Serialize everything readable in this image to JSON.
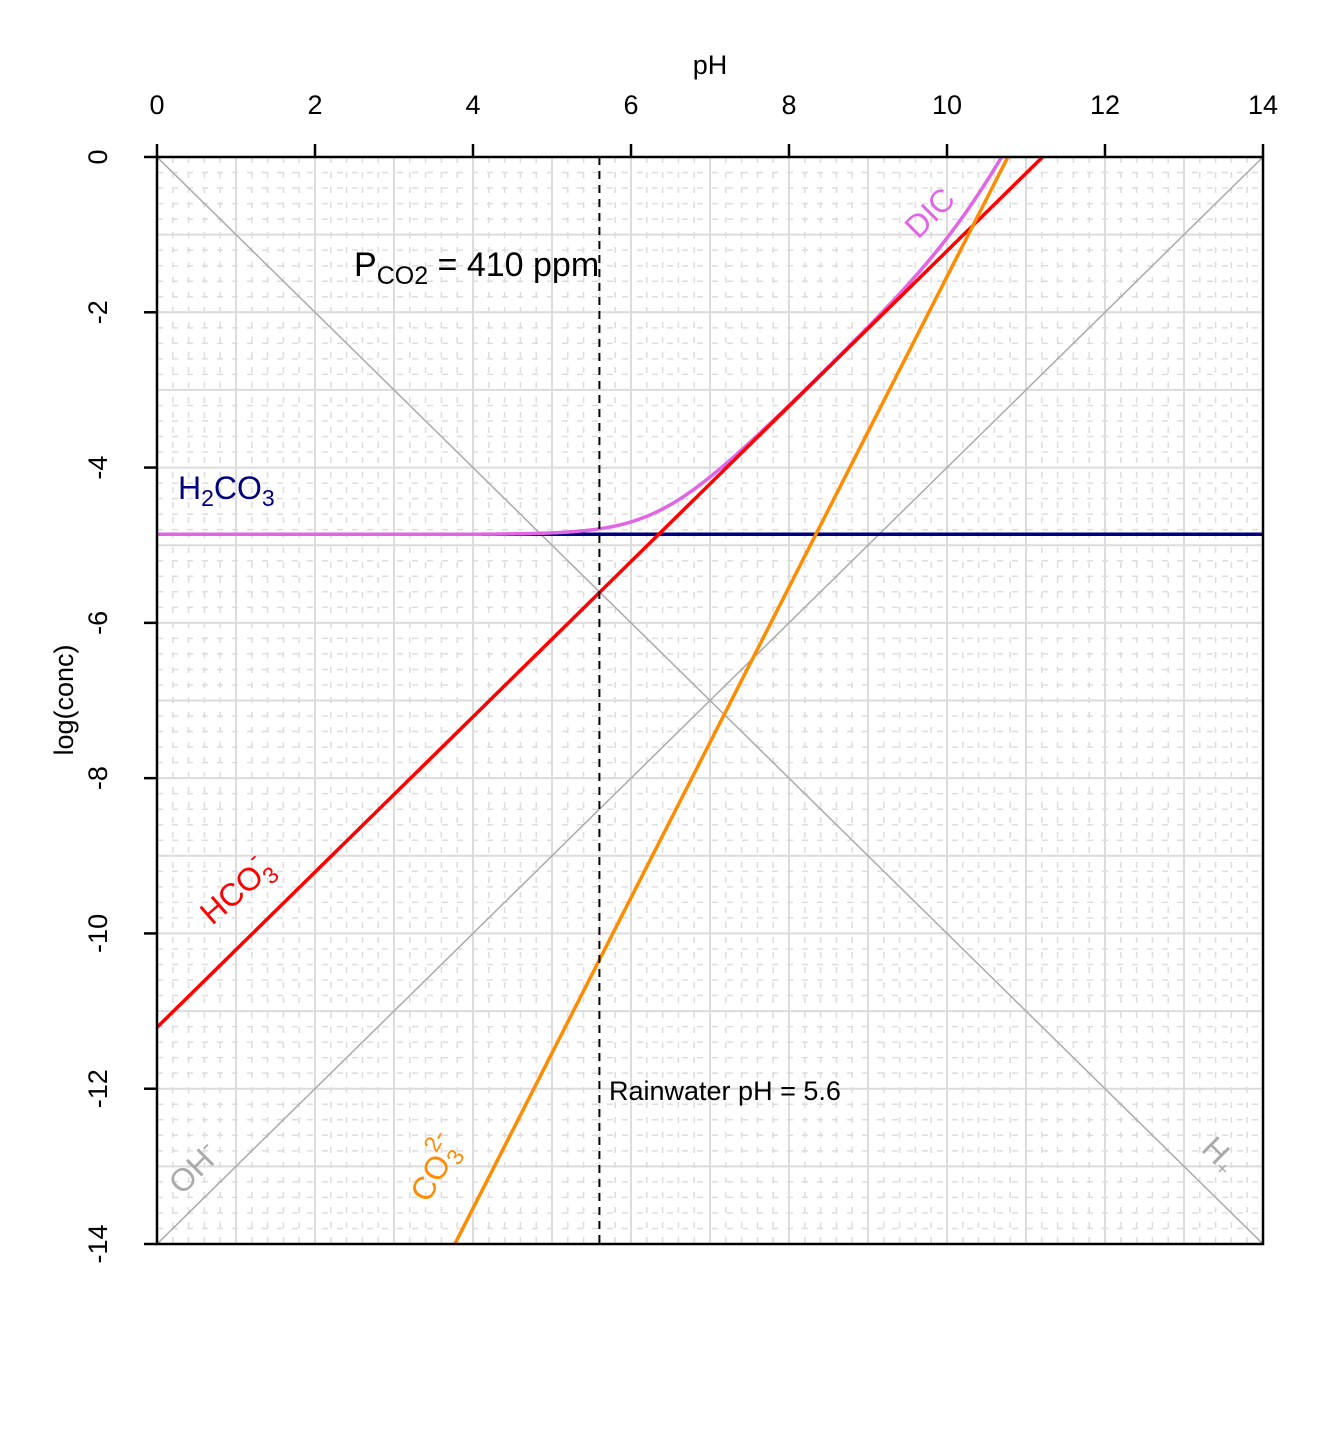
{
  "chart_data": {
    "type": "line",
    "xlabel": "pH",
    "ylabel": "log(conc)",
    "xlim": [
      0,
      14
    ],
    "ylim": [
      -14,
      0
    ],
    "x_axis_position": "top",
    "x_ticks": [
      "0",
      "2",
      "4",
      "6",
      "8",
      "10",
      "12",
      "14"
    ],
    "y_ticks": [
      "0",
      "-2",
      "-4",
      "-6",
      "-8",
      "-10",
      "-12",
      "-14"
    ],
    "grid": true,
    "annotation": {
      "main": "P",
      "sub": "CO2",
      "rest": " = 410 ppm"
    },
    "rainwater": {
      "ph": 5.6,
      "label": "Rainwater pH = 5.6",
      "style": "dashed",
      "color": "#000000"
    },
    "series": [
      {
        "name": "H2CO3",
        "label_main": "H",
        "label_sub1": "2",
        "label_mid": "CO",
        "label_sub2": "3",
        "color": "#000080",
        "equation": "log = -4.86"
      },
      {
        "name": "HCO3-",
        "label_main": "HCO",
        "label_sub": "3",
        "label_sup": "-",
        "color": "#ff0000",
        "equation": "log = pH - 11.21"
      },
      {
        "name": "CO32-",
        "label_main": "CO",
        "label_sub": "3",
        "label_sup": "2-",
        "color": "#ff8c00",
        "equation": "log = 2pH - 21.54"
      },
      {
        "name": "DIC",
        "label_main": "DIC",
        "color": "#e066e6",
        "equation": "log10(sum of carbonate species)"
      },
      {
        "name": "OH-",
        "label_main": "OH",
        "label_sup": "-",
        "color": "#aaaaaa",
        "equation": "log = pH - 14"
      },
      {
        "name": "H+",
        "label_main": "H",
        "label_sup": "+",
        "color": "#aaaaaa",
        "equation": "log = -pH"
      }
    ]
  }
}
